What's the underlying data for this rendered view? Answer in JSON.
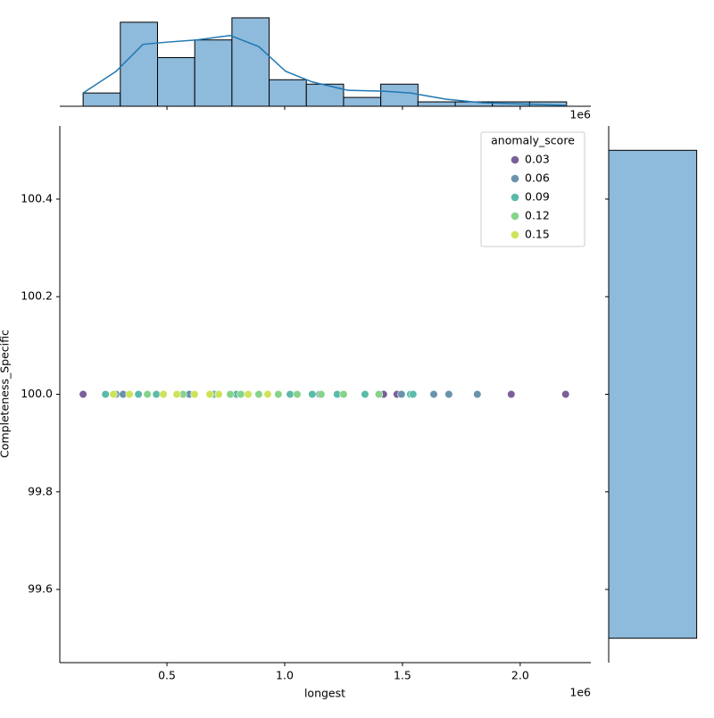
{
  "chart_data": [
    {
      "type": "scatter",
      "xlabel": "longest",
      "ylabel": "Completeness_Specific",
      "x_offset": "1e6",
      "xlim": [
        0.045,
        2.3
      ],
      "ylim": [
        99.45,
        100.55
      ],
      "xticks": [
        0.5,
        {
          "value": 1,
          "label": "1.0"
        },
        1.5,
        {
          "value": 2,
          "label": "2.0"
        }
      ],
      "yticks": [
        99.6,
        99.8,
        {
          "value": 100,
          "label": "100.0"
        },
        100.2,
        100.4
      ],
      "legend_title": "anomaly_score",
      "legend": "upper right",
      "series": [
        {
          "name": "0.03",
          "color": "#7a5f9a",
          "x": [
            0.144,
            1.42,
            1.477,
            1.962,
            2.193
          ],
          "y": [
            100,
            100,
            100,
            100,
            100
          ]
        },
        {
          "name": "0.06",
          "color": "#6a93ab",
          "x": [
            0.284,
            0.314,
            0.595,
            1.148,
            1.496,
            1.633,
            1.697,
            1.818
          ],
          "y": [
            100,
            100,
            100,
            100,
            100,
            100,
            100,
            100
          ]
        },
        {
          "name": "0.09",
          "color": "#5bbaa8",
          "x": [
            0.239,
            0.379,
            0.455,
            0.7,
            0.795,
            1.023,
            1.117,
            1.223,
            1.341,
            1.534,
            1.545
          ],
          "y": [
            100,
            100,
            100,
            100,
            100,
            100,
            100,
            100,
            100,
            100,
            100
          ]
        },
        {
          "name": "0.12",
          "color": "#86d38a",
          "x": [
            0.417,
            0.568,
            0.769,
            0.814,
            0.89,
            0.973,
            1.053,
            1.155,
            1.25,
            1.4
          ],
          "y": [
            100,
            100,
            100,
            100,
            100,
            100,
            100,
            100,
            100,
            100
          ]
        },
        {
          "name": "0.15",
          "color": "#cfe35a",
          "x": [
            0.273,
            0.341,
            0.485,
            0.542,
            0.617,
            0.682,
            0.72,
            0.845,
            0.928
          ],
          "y": [
            100,
            100,
            100,
            100,
            100,
            100,
            100,
            100,
            100
          ]
        }
      ]
    },
    {
      "type": "histogram",
      "x_offset": "1e6",
      "color": "#8ebadb",
      "bins": [
        0.144,
        0.302,
        0.46,
        0.618,
        0.776,
        0.934,
        1.092,
        1.25,
        1.408,
        1.566,
        1.724,
        1.882,
        2.04,
        2.197
      ],
      "counts": [
        3,
        19,
        11,
        15,
        20,
        6,
        5,
        2,
        5,
        1,
        1,
        1,
        1
      ],
      "kde": {
        "color": "#1f77b4",
        "x": [
          0.144,
          0.284,
          0.398,
          0.5,
          0.625,
          0.769,
          0.89,
          1.004,
          1.117,
          1.269,
          1.42,
          1.534,
          1.686,
          1.837,
          2.197
        ],
        "values": [
          3,
          7.9,
          14,
          14.5,
          15,
          16,
          13.5,
          7.9,
          5.5,
          3.6,
          3.4,
          3,
          1.6,
          0.8,
          0.2
        ]
      },
      "xlim": [
        0.045,
        2.3
      ],
      "ylim": [
        0,
        21
      ],
      "xticks": [
        0.5,
        1,
        1.5,
        2
      ]
    },
    {
      "type": "histogram",
      "orientation": "horizontal",
      "color": "#8ebadb",
      "bins": [
        99.5,
        100.5
      ],
      "counts": [
        90
      ],
      "xlim": [
        0,
        94
      ],
      "ylim": [
        99.45,
        100.55
      ],
      "yticks": [
        99.6,
        99.8,
        100,
        100.2,
        100.4
      ]
    }
  ]
}
